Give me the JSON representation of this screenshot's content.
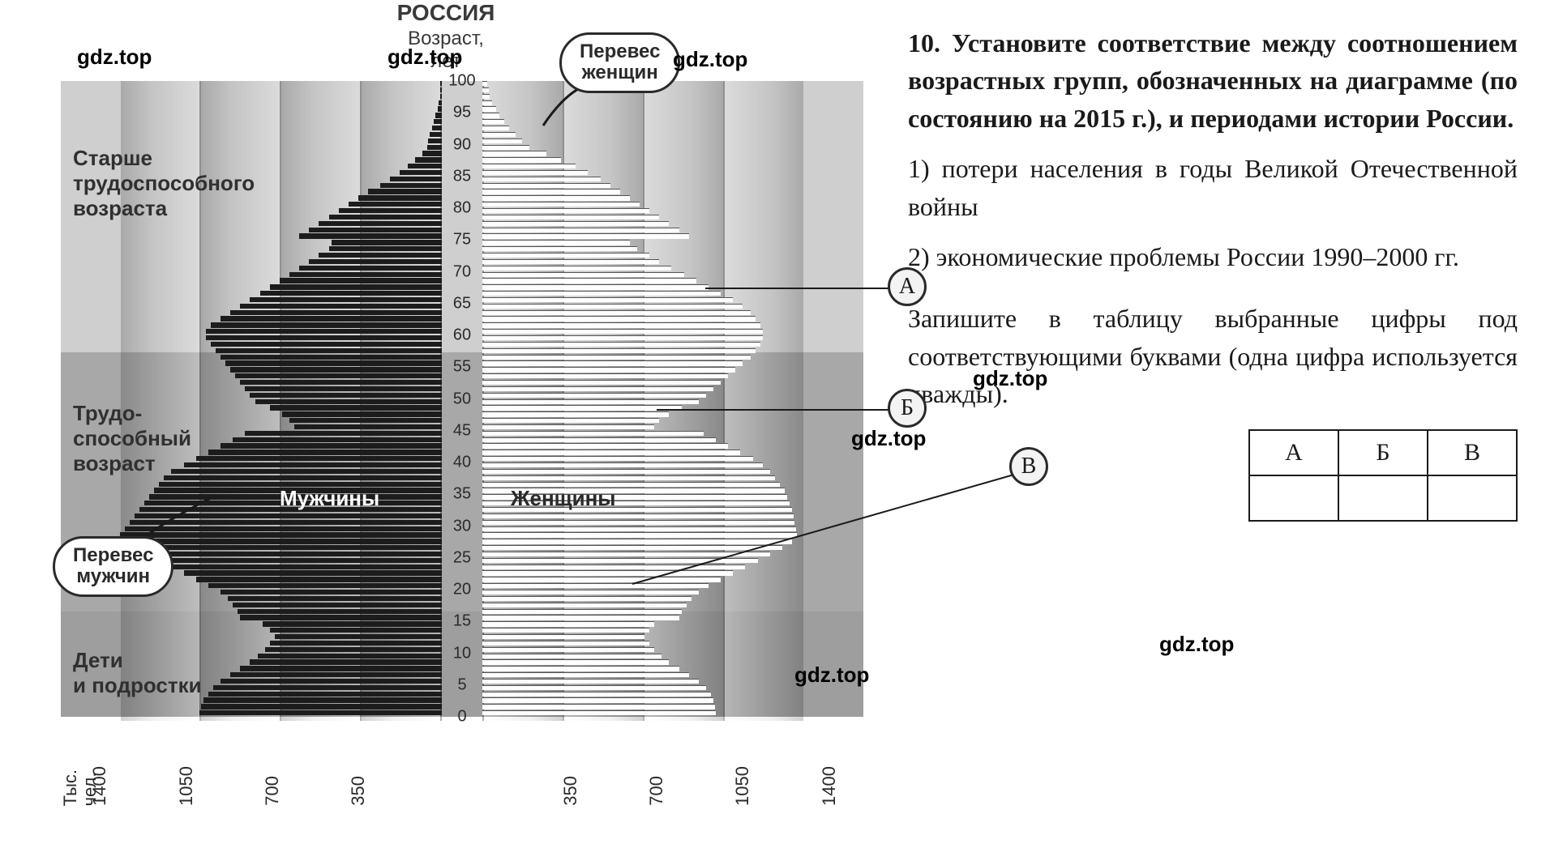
{
  "watermarks": {
    "text": "gdz.top"
  },
  "chart": {
    "title": "РОССИЯ",
    "axis_label": "Возраст,\nлет",
    "age_ticks": [
      100,
      95,
      90,
      85,
      80,
      75,
      70,
      65,
      60,
      55,
      50,
      45,
      40,
      35,
      30,
      25,
      20,
      15,
      10,
      5,
      0
    ],
    "age_tick_count": 21,
    "x_ticks": [
      1400,
      1050,
      700,
      350
    ],
    "x_title": "Тыс.\nчел.",
    "x_max": 1550,
    "bands": {
      "old": {
        "label": "Старше\nтрудоспособного\nвозраста",
        "top_pct": 0,
        "height_pct": 42.4
      },
      "work": {
        "label": "Трудо-\nспособный\nвозраст",
        "top_pct": 42.4,
        "height_pct": 40.5
      },
      "young": {
        "label": "Дети\nи подростки",
        "top_pct": 82.9,
        "height_pct": 16.5
      }
    },
    "side_labels": {
      "male": "Мужчины",
      "female": "Женщины"
    },
    "callouts": {
      "female_surplus": "Перевес\nженщин",
      "male_surplus": "Перевес\nмужчин"
    },
    "markers": {
      "A": "А",
      "B": "Б",
      "V": "В"
    },
    "colors": {
      "male_bar": "#1c1c1c",
      "female_bar": "#fdfdfd",
      "band_old": "#cfcfcf",
      "band_work": "#a8a8a8",
      "band_young": "#9e9e9e",
      "text": "#2a2a2a",
      "callout_border": "#2a2a2a"
    },
    "bars": {
      "comment": "values in thousands of people, estimated from gridlines; age_top is upper bound of each 1-yr cohort",
      "male": [
        5,
        5,
        8,
        12,
        18,
        25,
        32,
        40,
        48,
        55,
        60,
        80,
        110,
        140,
        170,
        210,
        250,
        300,
        340,
        380,
        420,
        460,
        500,
        540,
        580,
        450,
        460,
        500,
        540,
        580,
        620,
        660,
        700,
        740,
        780,
        820,
        860,
        900,
        940,
        960,
        960,
        940,
        920,
        900,
        880,
        860,
        840,
        820,
        800,
        780,
        760,
        700,
        650,
        620,
        600,
        800,
        850,
        900,
        950,
        1000,
        1050,
        1100,
        1130,
        1150,
        1170,
        1190,
        1210,
        1230,
        1250,
        1270,
        1290,
        1310,
        1290,
        1250,
        1200,
        1150,
        1100,
        1050,
        1000,
        950,
        900,
        870,
        850,
        830,
        820,
        730,
        700,
        680,
        700,
        720,
        750,
        780,
        820,
        860,
        900,
        930,
        950,
        970,
        980,
        985
      ],
      "female": [
        20,
        25,
        30,
        40,
        55,
        70,
        90,
        110,
        135,
        160,
        190,
        260,
        320,
        380,
        430,
        480,
        520,
        560,
        600,
        640,
        680,
        720,
        760,
        800,
        840,
        600,
        630,
        680,
        720,
        770,
        820,
        870,
        920,
        970,
        1020,
        1060,
        1090,
        1110,
        1130,
        1140,
        1140,
        1130,
        1110,
        1090,
        1060,
        1030,
        1000,
        970,
        940,
        910,
        880,
        810,
        760,
        720,
        700,
        900,
        950,
        1000,
        1050,
        1100,
        1140,
        1170,
        1190,
        1210,
        1230,
        1240,
        1250,
        1260,
        1265,
        1270,
        1275,
        1280,
        1260,
        1220,
        1170,
        1120,
        1070,
        1020,
        970,
        920,
        880,
        850,
        830,
        810,
        800,
        700,
        680,
        660,
        680,
        700,
        730,
        760,
        800,
        840,
        880,
        910,
        930,
        940,
        945,
        950
      ]
    }
  },
  "task": {
    "number": "10.",
    "head": "Установите соответствие меж­ду соотношением возрастных групп, обозначенных на диа­грамме (по состоянию на 2015 г.), и периодами истории России.",
    "options": [
      "1) потери населения в годы Ве­ликой Отечественной войны",
      "2) экономические проблемы Рос­сии 1990–2000 гг."
    ],
    "instruction": "Запишите в таблицу выбранные цифры под соответствующими буквами (одна цифра использу­ется дважды).",
    "table_headers": [
      "А",
      "Б",
      "В"
    ]
  }
}
